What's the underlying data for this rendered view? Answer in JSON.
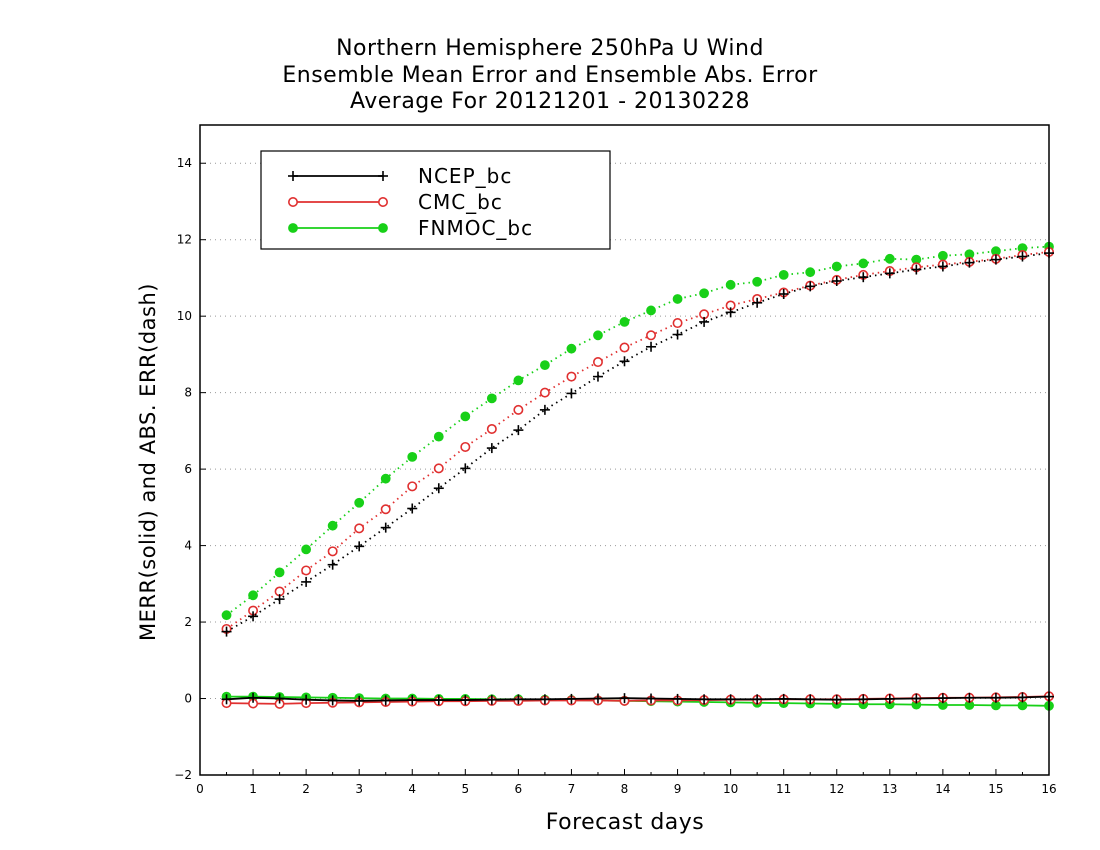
{
  "chart_data": {
    "type": "line",
    "title": [
      "Northern Hemisphere 250hPa U Wind",
      "Ensemble Mean Error and Ensemble Abs. Error",
      "Average For 20121201 - 20130228"
    ],
    "xlabel": "Forecast days",
    "ylabel": "MERR(solid) and ABS. ERR(dash)",
    "xlim": [
      0,
      16
    ],
    "ylim": [
      -2,
      15
    ],
    "xticks": [
      0,
      1,
      2,
      3,
      4,
      5,
      6,
      7,
      8,
      9,
      10,
      11,
      12,
      13,
      14,
      15,
      16
    ],
    "yticks": [
      -2,
      0,
      2,
      4,
      6,
      8,
      10,
      12,
      14
    ],
    "grid": "y-dotted",
    "legend_position": "top-left",
    "x": [
      0.5,
      1,
      1.5,
      2,
      2.5,
      3,
      3.5,
      4,
      4.5,
      5,
      5.5,
      6,
      6.5,
      7,
      7.5,
      8,
      8.5,
      9,
      9.5,
      10,
      10.5,
      11,
      11.5,
      12,
      12.5,
      13,
      13.5,
      14,
      14.5,
      15,
      15.5,
      16
    ],
    "series": [
      {
        "name": "NCEP_bc",
        "color": "#000000",
        "marker": "plus",
        "abs_err": [
          1.75,
          2.15,
          2.6,
          3.05,
          3.5,
          3.98,
          4.47,
          4.97,
          5.5,
          6.02,
          6.55,
          7.02,
          7.55,
          7.98,
          8.42,
          8.82,
          9.2,
          9.52,
          9.85,
          10.1,
          10.35,
          10.58,
          10.78,
          10.92,
          11.02,
          11.12,
          11.22,
          11.3,
          11.4,
          11.48,
          11.56,
          11.65
        ],
        "merr": [
          -0.02,
          0.02,
          0.0,
          -0.03,
          -0.05,
          -0.06,
          -0.05,
          -0.04,
          -0.04,
          -0.04,
          -0.03,
          -0.02,
          -0.02,
          -0.01,
          0.0,
          0.01,
          0.0,
          -0.01,
          -0.02,
          -0.02,
          -0.02,
          -0.01,
          -0.02,
          -0.03,
          -0.02,
          -0.01,
          0.0,
          0.01,
          0.02,
          0.02,
          0.03,
          0.05
        ]
      },
      {
        "name": "CMC_bc",
        "color": "#e03030",
        "marker": "open-circle",
        "abs_err": [
          1.82,
          2.3,
          2.8,
          3.35,
          3.85,
          4.45,
          4.95,
          5.55,
          6.02,
          6.58,
          7.05,
          7.55,
          8.0,
          8.42,
          8.8,
          9.18,
          9.5,
          9.82,
          10.05,
          10.28,
          10.45,
          10.62,
          10.8,
          10.95,
          11.08,
          11.18,
          11.28,
          11.35,
          11.42,
          11.5,
          11.6,
          11.68
        ],
        "merr": [
          -0.12,
          -0.13,
          -0.14,
          -0.12,
          -0.11,
          -0.1,
          -0.09,
          -0.08,
          -0.07,
          -0.07,
          -0.06,
          -0.06,
          -0.05,
          -0.05,
          -0.05,
          -0.06,
          -0.05,
          -0.05,
          -0.04,
          -0.03,
          -0.03,
          -0.02,
          -0.02,
          -0.02,
          -0.01,
          0.0,
          0.01,
          0.02,
          0.02,
          0.03,
          0.04,
          0.06
        ]
      },
      {
        "name": "FNMOC_bc",
        "color": "#18d018",
        "marker": "filled-circle",
        "abs_err": [
          2.18,
          2.7,
          3.3,
          3.9,
          4.52,
          5.12,
          5.75,
          6.32,
          6.85,
          7.38,
          7.85,
          8.32,
          8.72,
          9.15,
          9.5,
          9.85,
          10.15,
          10.45,
          10.6,
          10.82,
          10.9,
          11.08,
          11.15,
          11.3,
          11.38,
          11.5,
          11.48,
          11.58,
          11.62,
          11.7,
          11.78,
          11.82
        ],
        "merr": [
          0.05,
          0.05,
          0.04,
          0.03,
          0.02,
          0.01,
          0.0,
          0.0,
          -0.01,
          -0.01,
          -0.02,
          -0.02,
          -0.03,
          -0.04,
          -0.05,
          -0.06,
          -0.07,
          -0.08,
          -0.09,
          -0.1,
          -0.11,
          -0.12,
          -0.13,
          -0.14,
          -0.15,
          -0.15,
          -0.16,
          -0.17,
          -0.17,
          -0.18,
          -0.18,
          -0.19
        ]
      }
    ]
  }
}
